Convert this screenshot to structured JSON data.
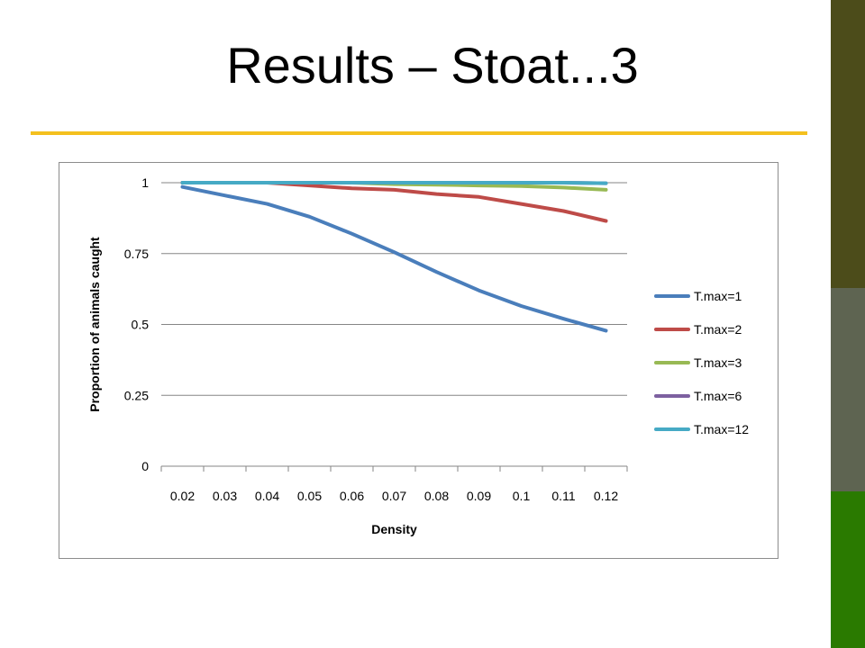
{
  "slide": {
    "title": "Results – Stoat...3"
  },
  "theme": {
    "rule_color": "#F4C01E",
    "band_colors": [
      "#4C4C1A",
      "#5E6451",
      "#2A7A00"
    ]
  },
  "chart_data": {
    "type": "line",
    "title": "",
    "xlabel": "Density",
    "ylabel": "Proportion of animals caught",
    "categories": [
      "0.02",
      "0.03",
      "0.04",
      "0.05",
      "0.06",
      "0.07",
      "0.08",
      "0.09",
      "0.1",
      "0.11",
      "0.12"
    ],
    "ylim": [
      0,
      1
    ],
    "yticks": [
      "0",
      "0.25",
      "0.5",
      "0.75",
      "1"
    ],
    "grid": true,
    "legend_position": "right",
    "series": [
      {
        "name": "T.max=1",
        "color": "#4A7EBB",
        "values": [
          0.985,
          0.955,
          0.925,
          0.88,
          0.82,
          0.755,
          0.685,
          0.62,
          0.565,
          0.52,
          0.478
        ]
      },
      {
        "name": "T.max=2",
        "color": "#BE4B48",
        "values": [
          1,
          1,
          1,
          0.99,
          0.98,
          0.975,
          0.96,
          0.95,
          0.925,
          0.9,
          0.865
        ]
      },
      {
        "name": "T.max=3",
        "color": "#98B954",
        "values": [
          1,
          1,
          1,
          1,
          1,
          0.995,
          0.993,
          0.99,
          0.988,
          0.983,
          0.975
        ]
      },
      {
        "name": "T.max=6",
        "color": "#7D60A0",
        "values": [
          1,
          1,
          1,
          1,
          1,
          1,
          1,
          1,
          1,
          1,
          0.998
        ]
      },
      {
        "name": "T.max=12",
        "color": "#46AAC5",
        "values": [
          1,
          1,
          1,
          1,
          1,
          1,
          1,
          1,
          1,
          1,
          0.998
        ]
      }
    ]
  }
}
